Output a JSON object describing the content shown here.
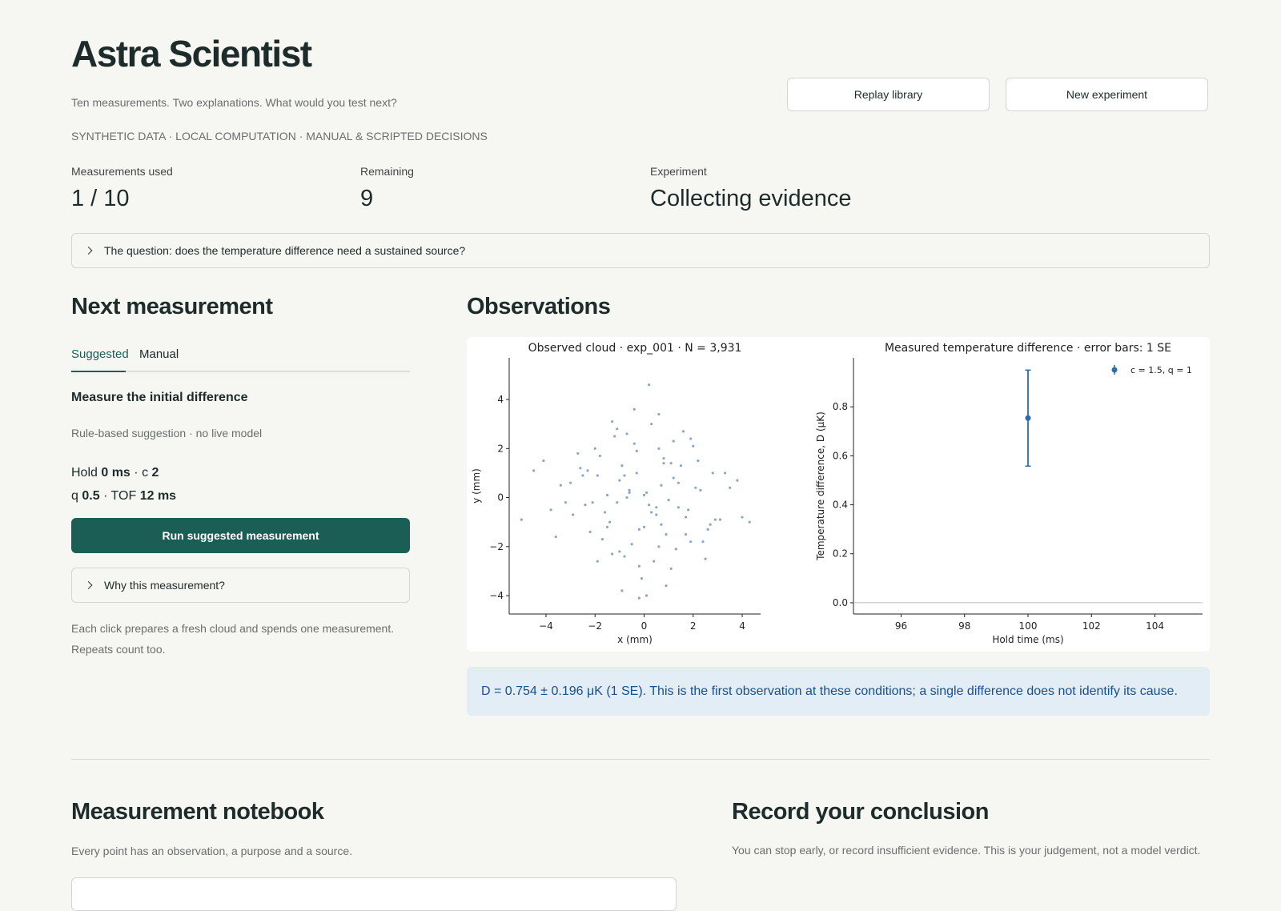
{
  "header": {
    "title": "Astra Scientist",
    "subtitle": "Ten measurements. Two explanations. What would you test next?",
    "tagline": "SYNTHETIC DATA · LOCAL COMPUTATION · MANUAL & SCRIPTED DECISIONS",
    "buttons": [
      "Replay library",
      "New experiment"
    ]
  },
  "stats": [
    {
      "label": "Measurements used",
      "value": "1 / 10"
    },
    {
      "label": "Remaining",
      "value": "9"
    },
    {
      "label": "Experiment",
      "value": "Collecting evidence"
    }
  ],
  "question": "The question: does the temperature difference need a sustained source?",
  "next_measurement": {
    "heading": "Next measurement",
    "tabs": [
      "Suggested",
      "Manual"
    ],
    "suggestion_title": "Measure the initial difference",
    "suggestion_note": "Rule-based suggestion · no live model",
    "params": [
      [
        {
          "label": "Hold",
          "value": "0 ms"
        },
        {
          "label": "c",
          "value": "2"
        }
      ],
      [
        {
          "label": "q",
          "value": "0.5"
        },
        {
          "label": "TOF",
          "value": "12 ms"
        }
      ]
    ],
    "separator": "·",
    "run_button": "Run suggested measurement",
    "why_toggle": "Why this measurement?",
    "note": "Each click prepares a fresh cloud and spends one measurement. Repeats count too."
  },
  "observations": {
    "heading": "Observations",
    "summary": "D = 0.754 ± 0.196 μK (1 SE). This is the first observation at these conditions; a single difference does not identify its cause."
  },
  "chart_data": [
    {
      "type": "scatter",
      "title": "Observed cloud · exp_001 · N = 3,931",
      "x_label": "x (mm)",
      "y_label": "y (mm)",
      "color": "#3a6ea5",
      "x": [
        0.2,
        -0.8,
        1.1,
        -1.5,
        0.6,
        2.1,
        -2.3,
        0.0,
        1.7,
        -0.4,
        0.9,
        -1.1,
        2.8,
        -2.9,
        0.3,
        -0.2,
        1.4,
        -1.8,
        0.7,
        -0.6,
        3.1,
        -3.4,
        1.9,
        -1.3,
        0.5,
        -0.9,
        2.4,
        -2.0,
        1.2,
        -0.1,
        0.8,
        -1.6,
        2.6,
        -2.6,
        0.1,
        -0.5,
        1.6,
        -1.0,
        3.5,
        -3.8,
        0.4,
        -0.3,
        1.0,
        -1.4,
        2.2,
        -2.2,
        0.6,
        -0.7,
        1.3,
        -1.9,
        4.0,
        -4.5,
        0.9,
        -1.2,
        1.8,
        -0.8,
        2.0,
        -2.4,
        0.2,
        -0.2,
        1.5,
        -1.7,
        2.9,
        -3.0,
        0.0,
        -0.6,
        1.1,
        -1.1,
        3.3,
        -3.6,
        0.7,
        -0.4,
        1.7,
        -2.1,
        2.5,
        -2.7,
        0.3,
        -0.9,
        1.2,
        -1.5,
        -5.0,
        4.3,
        0.1,
        -1.3,
        2.3,
        -1.9,
        0.8,
        -0.2,
        1.4,
        -0.7,
        3.8,
        -4.1,
        0.5,
        -1.0,
        1.9,
        -2.5,
        0.6,
        -0.3,
        2.7,
        -3.2
      ],
      "values": [
        -0.3,
        0.9,
        1.4,
        -1.2,
        -2.0,
        0.4,
        1.1,
        0.1,
        -0.8,
        2.2,
        -1.5,
        -0.2,
        1.0,
        -0.7,
        3.0,
        -2.8,
        0.6,
        1.7,
        -1.1,
        0.3,
        -0.9,
        0.5,
        2.4,
        -2.3,
        -0.4,
        1.3,
        -1.8,
        2.0,
        0.8,
        -3.3,
        1.6,
        -0.6,
        -1.3,
        1.2,
        0.2,
        -1.9,
        2.7,
        0.7,
        0.4,
        -0.5,
        -2.6,
        1.9,
        -0.1,
        -1.0,
        1.5,
        -1.4,
        3.4,
        0.0,
        -2.1,
        0.9,
        -0.8,
        1.1,
        -3.6,
        2.5,
        -0.5,
        -2.4,
        2.1,
        -0.3,
        4.6,
        -4.1,
        1.3,
        -1.7,
        -0.9,
        0.6,
        -1.2,
        0.2,
        -2.9,
        2.8,
        1.0,
        -1.6,
        0.5,
        3.6,
        -1.5,
        -0.2,
        -2.5,
        1.8,
        -0.6,
        -3.8,
        2.3,
        0.1,
        -0.9,
        -1.0,
        -4.0,
        3.1,
        0.3,
        -2.6,
        1.4,
        -1.3,
        -0.4,
        2.6,
        0.7,
        1.5,
        -0.7,
        -2.2,
        -1.8,
        0.9,
        2.0,
        1.0,
        -1.1,
        -0.2
      ],
      "xlim": [
        -5.5,
        4.75
      ],
      "ylim": [
        -4.75,
        5.7
      ],
      "xticks": [
        {
          "value": -4,
          "label": "−4"
        },
        {
          "value": -2,
          "label": "−2"
        },
        0,
        2,
        4
      ],
      "yticks": [
        {
          "value": -4,
          "label": "−4"
        },
        {
          "value": -2,
          "label": "−2"
        },
        0,
        2,
        4
      ]
    },
    {
      "type": "errorbar",
      "title": "Measured temperature difference · error bars: 1 SE",
      "x_label": "Hold time (ms)",
      "y_label": "Temperature difference, D (μK)",
      "x": [
        100
      ],
      "series": [
        {
          "name": "c = 1.5, q = 1",
          "color": "#2a6db5",
          "values": [
            0.754
          ],
          "errors": [
            0.196
          ]
        }
      ],
      "xlim": [
        94.5,
        105.5
      ],
      "ylim": [
        -0.046,
        1.0
      ],
      "xticks": [
        96,
        98,
        100,
        102,
        104
      ],
      "yticks": [
        {
          "value": 0,
          "label": "0.0"
        },
        0.2,
        0.4,
        0.6,
        0.8
      ],
      "reference_line": 0,
      "legend": "upper right"
    }
  ],
  "notebook": {
    "heading": "Measurement notebook",
    "subtitle": "Every point has an observation, a purpose and a source."
  },
  "conclusion": {
    "heading": "Record your conclusion",
    "subtitle": "You can stop early, or record insufficient evidence. This is your judgement, not a model verdict."
  }
}
